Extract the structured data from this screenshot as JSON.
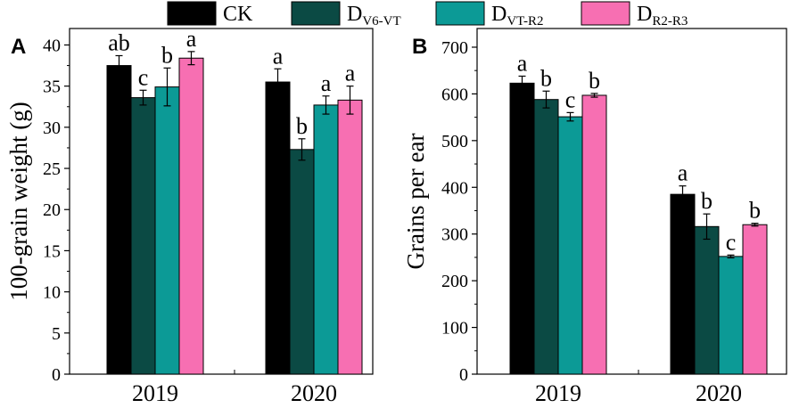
{
  "legend": {
    "entries": [
      {
        "main": "CK",
        "sub": "",
        "color": "#000000"
      },
      {
        "main": "D",
        "sub": "V6-VT",
        "color": "#0b4a44"
      },
      {
        "main": "D",
        "sub": "VT-R2",
        "color": "#0c9a96"
      },
      {
        "main": "D",
        "sub": "R2-R3",
        "color": "#f76fb2"
      }
    ]
  },
  "chart_data": [
    {
      "type": "bar",
      "panel_label": "A",
      "title": "",
      "xlabel": "",
      "ylabel": "100-grain weight (g)",
      "categories": [
        "2019",
        "2020"
      ],
      "ylim": [
        0,
        42
      ],
      "yticks": [
        0,
        5,
        10,
        15,
        20,
        25,
        30,
        35,
        40
      ],
      "series": [
        {
          "name": "CK",
          "color": "#000000",
          "values": [
            37.5,
            35.5
          ],
          "errors": [
            1.2,
            1.6
          ],
          "letters": [
            "ab",
            "a"
          ]
        },
        {
          "name": "DV6-VT",
          "color": "#0b4a44",
          "values": [
            33.6,
            27.3
          ],
          "errors": [
            0.9,
            1.3
          ],
          "letters": [
            "c",
            "b"
          ]
        },
        {
          "name": "DVT-R2",
          "color": "#0c9a96",
          "values": [
            34.9,
            32.7
          ],
          "errors": [
            2.3,
            1.1
          ],
          "letters": [
            "b",
            "a"
          ]
        },
        {
          "name": "DR2-R3",
          "color": "#f76fb2",
          "values": [
            38.4,
            33.3
          ],
          "errors": [
            0.8,
            1.7
          ],
          "letters": [
            "a",
            "a"
          ]
        }
      ]
    },
    {
      "type": "bar",
      "panel_label": "B",
      "title": "",
      "xlabel": "",
      "ylabel": "Grains per ear",
      "categories": [
        "2019",
        "2020"
      ],
      "ylim": [
        0,
        740
      ],
      "yticks": [
        0,
        100,
        200,
        300,
        400,
        500,
        600,
        700
      ],
      "series": [
        {
          "name": "CK",
          "color": "#000000",
          "values": [
            623,
            385
          ],
          "errors": [
            15,
            18
          ],
          "letters": [
            "a",
            "a"
          ]
        },
        {
          "name": "DV6-VT",
          "color": "#0b4a44",
          "values": [
            588,
            316
          ],
          "errors": [
            18,
            27
          ],
          "letters": [
            "b",
            "b"
          ]
        },
        {
          "name": "DVT-R2",
          "color": "#0c9a96",
          "values": [
            551,
            252
          ],
          "errors": [
            9,
            3
          ],
          "letters": [
            "c",
            "c"
          ]
        },
        {
          "name": "DR2-R3",
          "color": "#f76fb2",
          "values": [
            597,
            320
          ],
          "errors": [
            4,
            3
          ],
          "letters": [
            "b",
            "b"
          ]
        }
      ]
    }
  ]
}
